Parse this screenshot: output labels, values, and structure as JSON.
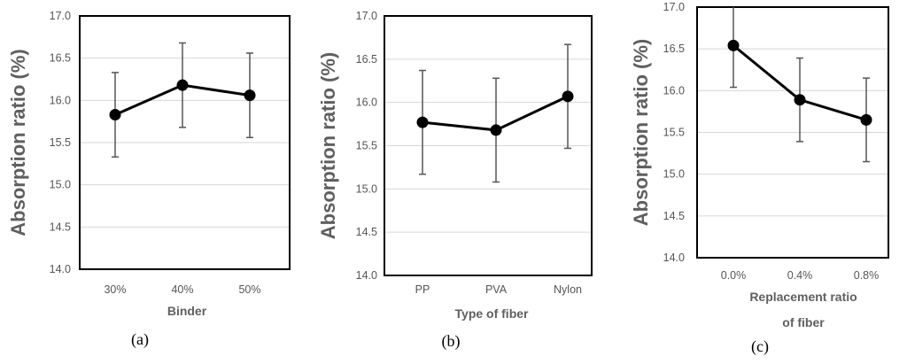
{
  "chart_data": [
    {
      "type": "line",
      "panel_label": "(a)",
      "categories": [
        "30%",
        "40%",
        "50%"
      ],
      "values": [
        15.83,
        16.18,
        16.06
      ],
      "errors": [
        0.5,
        0.5,
        0.5
      ],
      "ylim": [
        14.0,
        17.0
      ],
      "yticks": [
        "14.0",
        "14.5",
        "15.0",
        "15.5",
        "16.0",
        "16.5",
        "17.0"
      ],
      "ylabel": "Absorption ratio (%)",
      "xlabel_lines": [
        "Binder"
      ],
      "grid": true
    },
    {
      "type": "line",
      "panel_label": "(b)",
      "categories": [
        "PP",
        "PVA",
        "Nylon"
      ],
      "values": [
        15.77,
        15.68,
        16.07
      ],
      "errors": [
        0.6,
        0.6,
        0.6
      ],
      "ylim": [
        14.0,
        17.0
      ],
      "yticks": [
        "14.0",
        "14.5",
        "15.0",
        "15.5",
        "16.0",
        "16.5",
        "17.0"
      ],
      "ylabel": "Absorption ratio (%)",
      "xlabel_lines": [
        "Type of  fiber"
      ],
      "grid": true
    },
    {
      "type": "line",
      "panel_label": "(c)",
      "categories": [
        "0.0%",
        "0.4%",
        "0.8%"
      ],
      "values": [
        16.54,
        15.89,
        15.65
      ],
      "errors": [
        0.5,
        0.5,
        0.5
      ],
      "ylim": [
        14.0,
        17.0
      ],
      "yticks": [
        "14.0",
        "14.5",
        "15.0",
        "15.5",
        "16.0",
        "16.5",
        "17.0"
      ],
      "ylabel": "Absorption ratio (%)",
      "xlabel_lines": [
        "Replacement ratio",
        "of fiber"
      ],
      "grid": true
    }
  ]
}
